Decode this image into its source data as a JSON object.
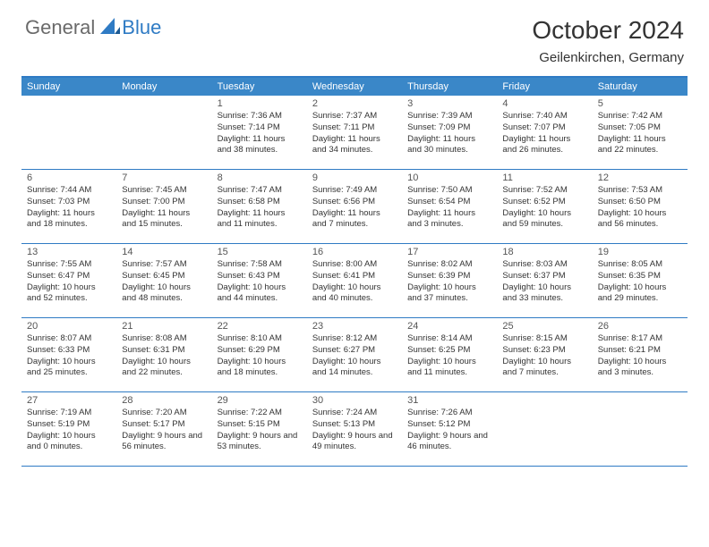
{
  "brand": {
    "part1": "General",
    "part2": "Blue",
    "triangle_color": "#2f7bc4"
  },
  "header": {
    "title": "October 2024",
    "location": "Geilenkirchen, Germany"
  },
  "style": {
    "header_bg": "#3a87c8",
    "header_border": "#2f7bc4",
    "row_border": "#2f7bc4",
    "text_color": "#333333",
    "page_bg": "#ffffff"
  },
  "days_of_week": [
    "Sunday",
    "Monday",
    "Tuesday",
    "Wednesday",
    "Thursday",
    "Friday",
    "Saturday"
  ],
  "weeks": [
    [
      null,
      null,
      {
        "n": "1",
        "sunrise": "7:36 AM",
        "sunset": "7:14 PM",
        "daylight": "11 hours and 38 minutes."
      },
      {
        "n": "2",
        "sunrise": "7:37 AM",
        "sunset": "7:11 PM",
        "daylight": "11 hours and 34 minutes."
      },
      {
        "n": "3",
        "sunrise": "7:39 AM",
        "sunset": "7:09 PM",
        "daylight": "11 hours and 30 minutes."
      },
      {
        "n": "4",
        "sunrise": "7:40 AM",
        "sunset": "7:07 PM",
        "daylight": "11 hours and 26 minutes."
      },
      {
        "n": "5",
        "sunrise": "7:42 AM",
        "sunset": "7:05 PM",
        "daylight": "11 hours and 22 minutes."
      }
    ],
    [
      {
        "n": "6",
        "sunrise": "7:44 AM",
        "sunset": "7:03 PM",
        "daylight": "11 hours and 18 minutes."
      },
      {
        "n": "7",
        "sunrise": "7:45 AM",
        "sunset": "7:00 PM",
        "daylight": "11 hours and 15 minutes."
      },
      {
        "n": "8",
        "sunrise": "7:47 AM",
        "sunset": "6:58 PM",
        "daylight": "11 hours and 11 minutes."
      },
      {
        "n": "9",
        "sunrise": "7:49 AM",
        "sunset": "6:56 PM",
        "daylight": "11 hours and 7 minutes."
      },
      {
        "n": "10",
        "sunrise": "7:50 AM",
        "sunset": "6:54 PM",
        "daylight": "11 hours and 3 minutes."
      },
      {
        "n": "11",
        "sunrise": "7:52 AM",
        "sunset": "6:52 PM",
        "daylight": "10 hours and 59 minutes."
      },
      {
        "n": "12",
        "sunrise": "7:53 AM",
        "sunset": "6:50 PM",
        "daylight": "10 hours and 56 minutes."
      }
    ],
    [
      {
        "n": "13",
        "sunrise": "7:55 AM",
        "sunset": "6:47 PM",
        "daylight": "10 hours and 52 minutes."
      },
      {
        "n": "14",
        "sunrise": "7:57 AM",
        "sunset": "6:45 PM",
        "daylight": "10 hours and 48 minutes."
      },
      {
        "n": "15",
        "sunrise": "7:58 AM",
        "sunset": "6:43 PM",
        "daylight": "10 hours and 44 minutes."
      },
      {
        "n": "16",
        "sunrise": "8:00 AM",
        "sunset": "6:41 PM",
        "daylight": "10 hours and 40 minutes."
      },
      {
        "n": "17",
        "sunrise": "8:02 AM",
        "sunset": "6:39 PM",
        "daylight": "10 hours and 37 minutes."
      },
      {
        "n": "18",
        "sunrise": "8:03 AM",
        "sunset": "6:37 PM",
        "daylight": "10 hours and 33 minutes."
      },
      {
        "n": "19",
        "sunrise": "8:05 AM",
        "sunset": "6:35 PM",
        "daylight": "10 hours and 29 minutes."
      }
    ],
    [
      {
        "n": "20",
        "sunrise": "8:07 AM",
        "sunset": "6:33 PM",
        "daylight": "10 hours and 25 minutes."
      },
      {
        "n": "21",
        "sunrise": "8:08 AM",
        "sunset": "6:31 PM",
        "daylight": "10 hours and 22 minutes."
      },
      {
        "n": "22",
        "sunrise": "8:10 AM",
        "sunset": "6:29 PM",
        "daylight": "10 hours and 18 minutes."
      },
      {
        "n": "23",
        "sunrise": "8:12 AM",
        "sunset": "6:27 PM",
        "daylight": "10 hours and 14 minutes."
      },
      {
        "n": "24",
        "sunrise": "8:14 AM",
        "sunset": "6:25 PM",
        "daylight": "10 hours and 11 minutes."
      },
      {
        "n": "25",
        "sunrise": "8:15 AM",
        "sunset": "6:23 PM",
        "daylight": "10 hours and 7 minutes."
      },
      {
        "n": "26",
        "sunrise": "8:17 AM",
        "sunset": "6:21 PM",
        "daylight": "10 hours and 3 minutes."
      }
    ],
    [
      {
        "n": "27",
        "sunrise": "7:19 AM",
        "sunset": "5:19 PM",
        "daylight": "10 hours and 0 minutes."
      },
      {
        "n": "28",
        "sunrise": "7:20 AM",
        "sunset": "5:17 PM",
        "daylight": "9 hours and 56 minutes."
      },
      {
        "n": "29",
        "sunrise": "7:22 AM",
        "sunset": "5:15 PM",
        "daylight": "9 hours and 53 minutes."
      },
      {
        "n": "30",
        "sunrise": "7:24 AM",
        "sunset": "5:13 PM",
        "daylight": "9 hours and 49 minutes."
      },
      {
        "n": "31",
        "sunrise": "7:26 AM",
        "sunset": "5:12 PM",
        "daylight": "9 hours and 46 minutes."
      },
      null,
      null
    ]
  ],
  "labels": {
    "sunrise": "Sunrise:",
    "sunset": "Sunset:",
    "daylight": "Daylight:"
  }
}
